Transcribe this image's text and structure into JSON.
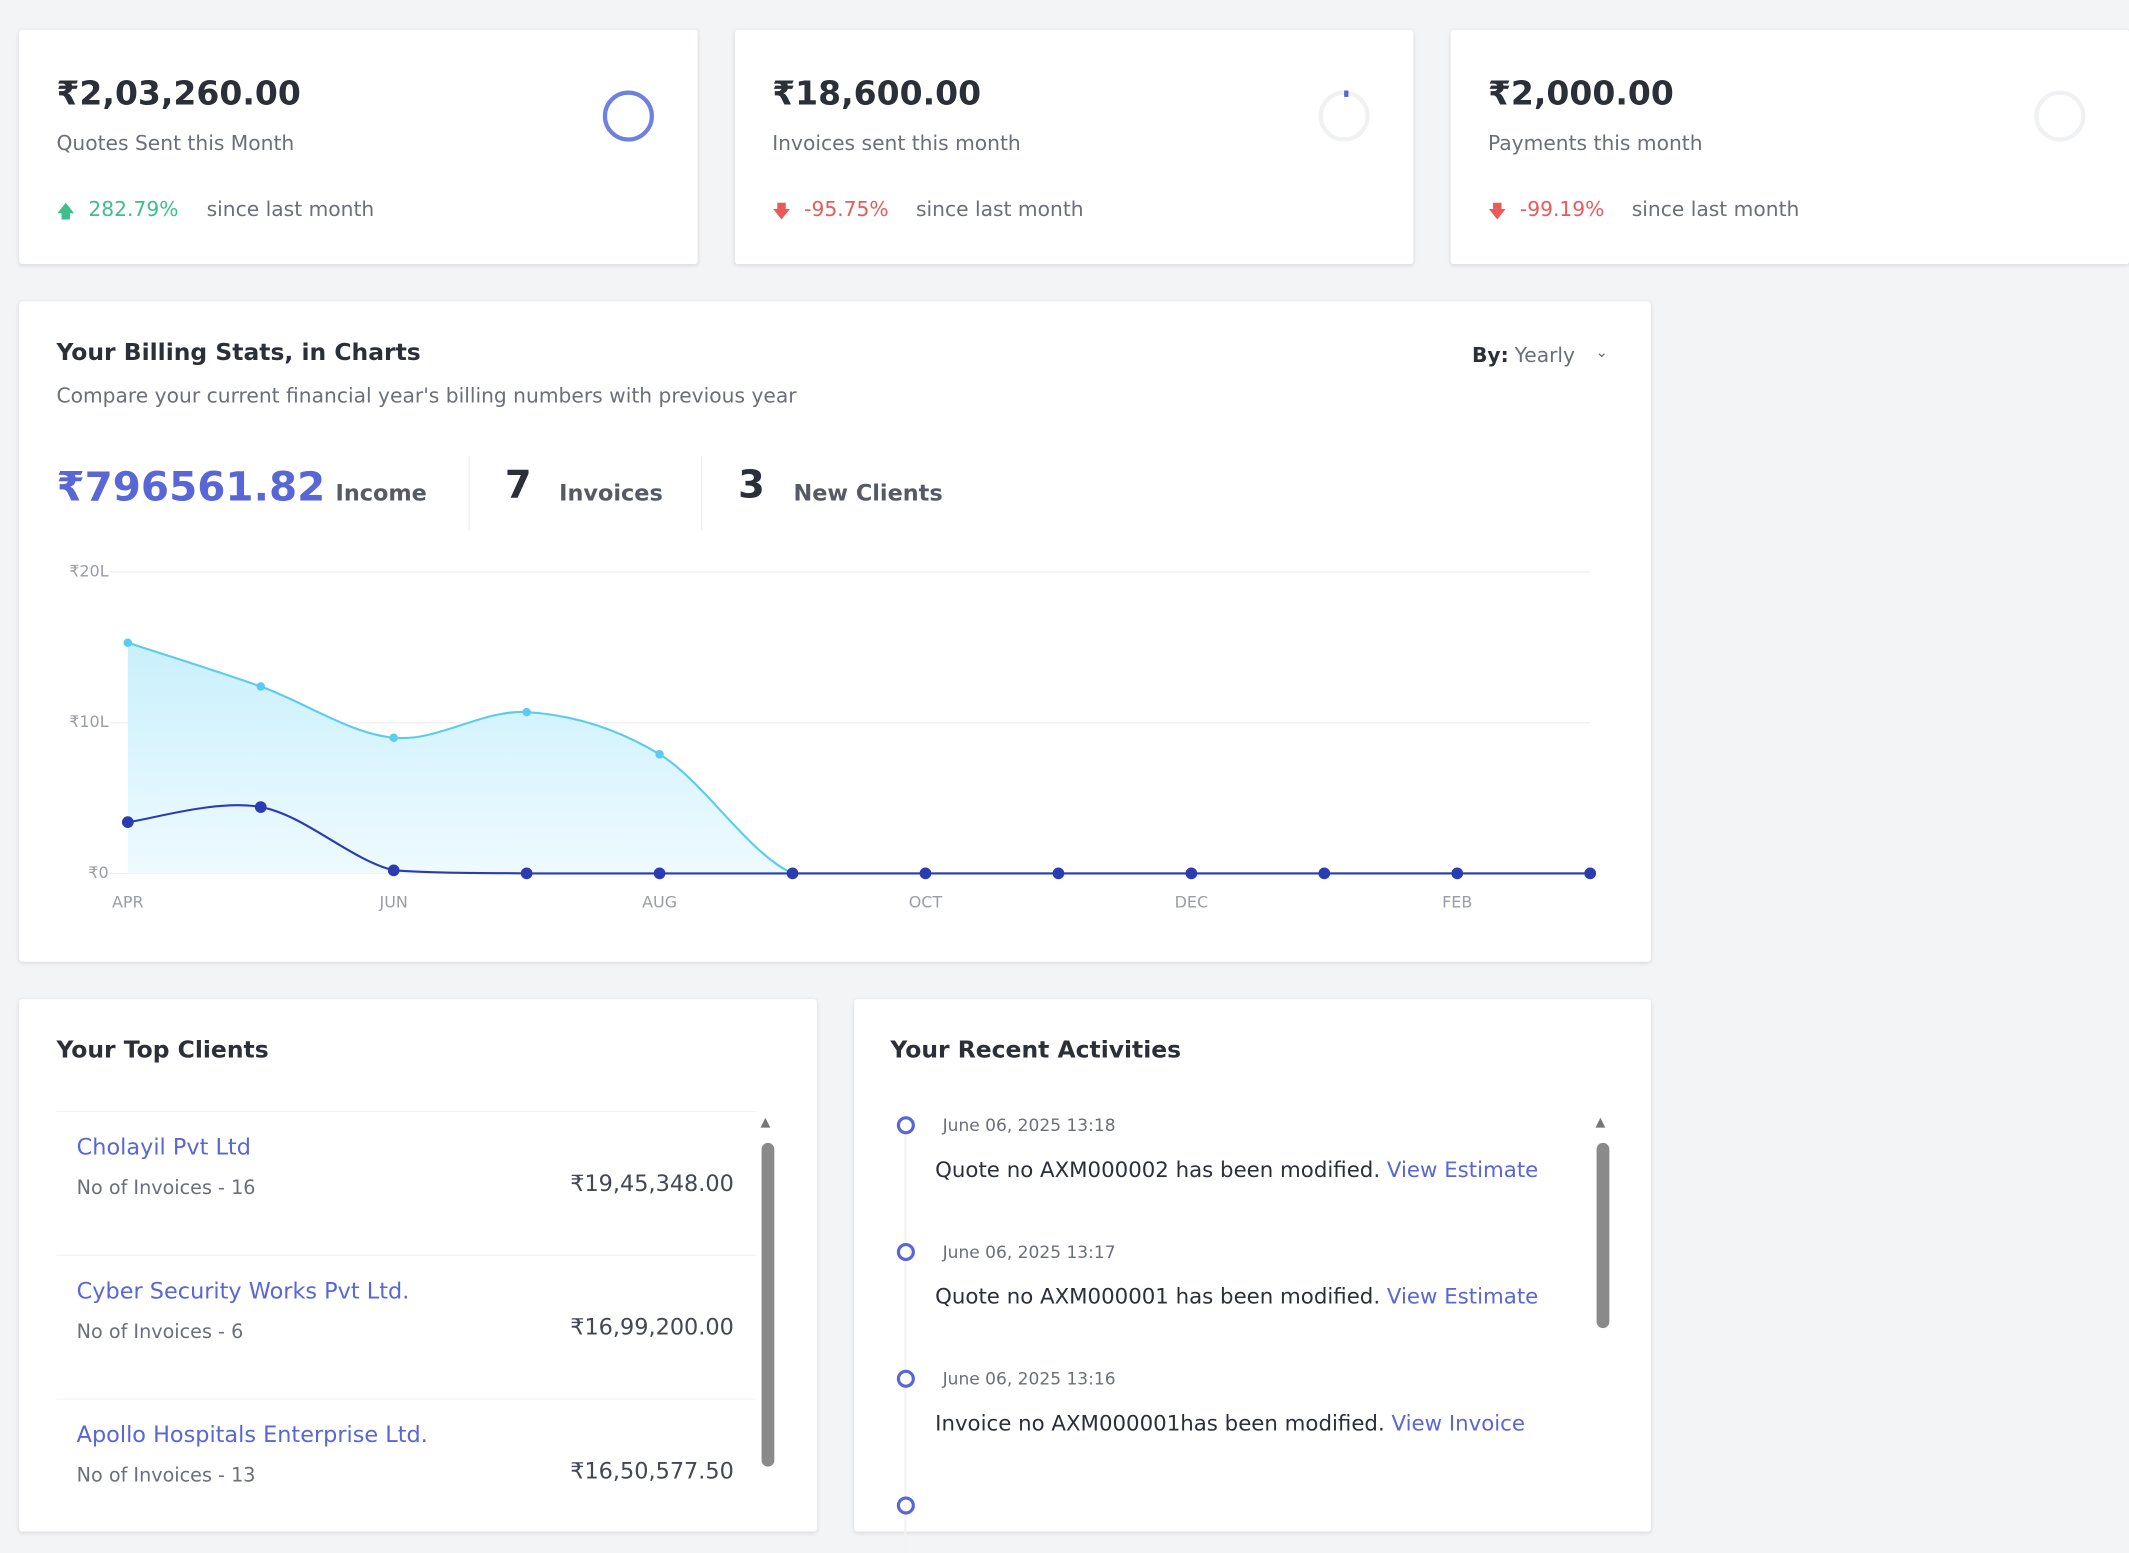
{
  "stat_cards": [
    {
      "amount": "₹2,03,260.00",
      "label": "Quotes Sent this Month",
      "change": "282.79%",
      "since": "since last month"
    },
    {
      "amount": "₹18,600.00",
      "label": "Invoices sent this month",
      "change": "-95.75%",
      "since": "since last month"
    },
    {
      "amount": "₹2,000.00",
      "label": "Payments this month",
      "change": "-99.19%",
      "since": "since last month"
    }
  ],
  "billing": {
    "title": "Your Billing Stats, in Charts",
    "subtitle": "Compare your current financial year's billing numbers with previous year",
    "by_label": "By:",
    "by_value": "Yearly",
    "income": "₹796561.82",
    "income_label": "Income",
    "invoices": 7,
    "invoices_label": "Invoices",
    "clients": 3,
    "clients_label": "New Clients"
  },
  "chart_data": {
    "type": "line",
    "categories": [
      "APR",
      null,
      "JUN",
      null,
      "AUG",
      null,
      "OCT",
      null,
      "DEC",
      null,
      "FEB",
      null
    ],
    "ylim": [
      0,
      20
    ],
    "yticks": [
      {
        "value": 0,
        "label": "₹0"
      },
      {
        "value": 10,
        "label": "₹10L"
      },
      {
        "value": 20,
        "label": "₹20L"
      }
    ],
    "grid": true,
    "series": [
      {
        "color": "#5ccbf2",
        "fill": true,
        "values": [
          15.3,
          12.4,
          9.0,
          10.7,
          7.9,
          0,
          0,
          0,
          0,
          0,
          0,
          0
        ]
      },
      {
        "color": "#2b3cb3",
        "fill": false,
        "values": [
          3.4,
          4.4,
          0.2,
          0,
          0,
          0,
          0,
          0,
          0,
          0,
          0,
          0
        ]
      }
    ]
  },
  "top_clients": {
    "title": "Your Top Clients",
    "rows": [
      {
        "name": "Cholayil Pvt Ltd",
        "invoices": "No of Invoices - 16",
        "amount": "₹19,45,348.00"
      },
      {
        "name": "Cyber Security Works Pvt Ltd.",
        "invoices": "No of Invoices - 6",
        "amount": "₹16,99,200.00"
      },
      {
        "name": "Apollo Hospitals Enterprise Ltd.",
        "invoices": "No of Invoices - 13",
        "amount": "₹16,50,577.50"
      }
    ]
  },
  "recent_activities": {
    "title": "Your Recent Activities",
    "items": [
      {
        "date": "June 06, 2025 13:18",
        "text": "Quote no AXM000002 has been modified.",
        "link": "View Estimate"
      },
      {
        "date": "June 06, 2025 13:17",
        "text": "Quote no AXM000001 has been modified.",
        "link": "View Estimate"
      },
      {
        "date": "June 06, 2025 13:16",
        "text": "Invoice no AXM000001has been modified.",
        "link": "View Invoice"
      }
    ]
  }
}
